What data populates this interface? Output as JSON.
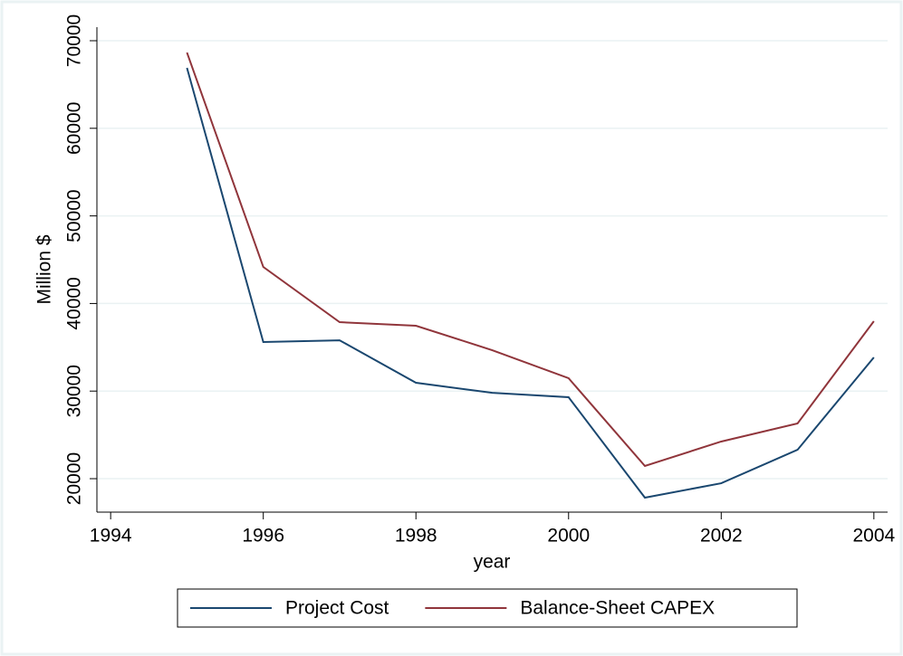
{
  "chart_data": {
    "type": "line",
    "x": [
      1995,
      1996,
      1997,
      1998,
      1999,
      2000,
      2001,
      2002,
      2003,
      2004
    ],
    "series": [
      {
        "name": "Project Cost",
        "color": "#1a476f",
        "values": [
          66900,
          35600,
          35800,
          30950,
          29800,
          29300,
          17830,
          19480,
          23300,
          33840
        ]
      },
      {
        "name": "Balance-Sheet CAPEX",
        "color": "#90353b",
        "values": [
          68650,
          44170,
          37870,
          37460,
          34670,
          31470,
          21450,
          24240,
          26300,
          37980
        ]
      }
    ],
    "xlabel": "year",
    "ylabel": "Million $",
    "xlim": [
      1993.82,
      2004.18
    ],
    "xticks": [
      1994,
      1996,
      1998,
      2000,
      2002,
      2004
    ],
    "ylim": [
      16180,
      71550
    ],
    "yticks": [
      20000,
      30000,
      40000,
      50000,
      60000,
      70000
    ],
    "grid": true,
    "legend": "bottom"
  }
}
